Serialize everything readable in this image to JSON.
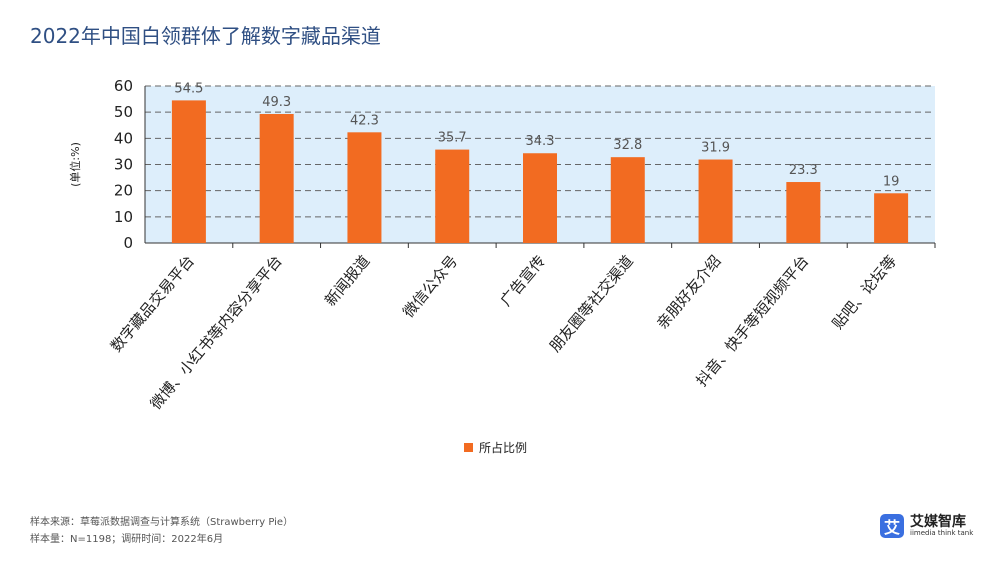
{
  "title": "2022年中国白领群体了解数字藏品渠道",
  "chart_data": {
    "type": "bar",
    "categories": [
      "数字藏品交易平台",
      "微博、小红书等内容分享平台",
      "新闻报道",
      "微信公众号",
      "广告宣传",
      "朋友圈等社交渠道",
      "亲朋好友介绍",
      "抖音、快手等短视频平台",
      "贴吧、论坛等"
    ],
    "series": [
      {
        "name": "所占比例",
        "values": [
          54.5,
          49.3,
          42.3,
          35.7,
          34.3,
          32.8,
          31.9,
          23.3,
          19
        ]
      }
    ],
    "ylabel": "(单位:%)",
    "ylim": [
      0,
      60
    ],
    "yticks": [
      0,
      10,
      20,
      30,
      40,
      50,
      60
    ],
    "grid": true,
    "legend_position": "bottom-center",
    "bar_color": "#f26b21",
    "plot_background": "#ddeefb",
    "grid_color": "#666666"
  },
  "footnotes": [
    "样本来源：草莓派数据调查与计算系统（Strawberry Pie）",
    "样本量：N=1198；调研时间：2022年6月"
  ],
  "logo": {
    "mark": "艾",
    "name": "艾媒智库",
    "subtitle": "iimedia think tank"
  }
}
